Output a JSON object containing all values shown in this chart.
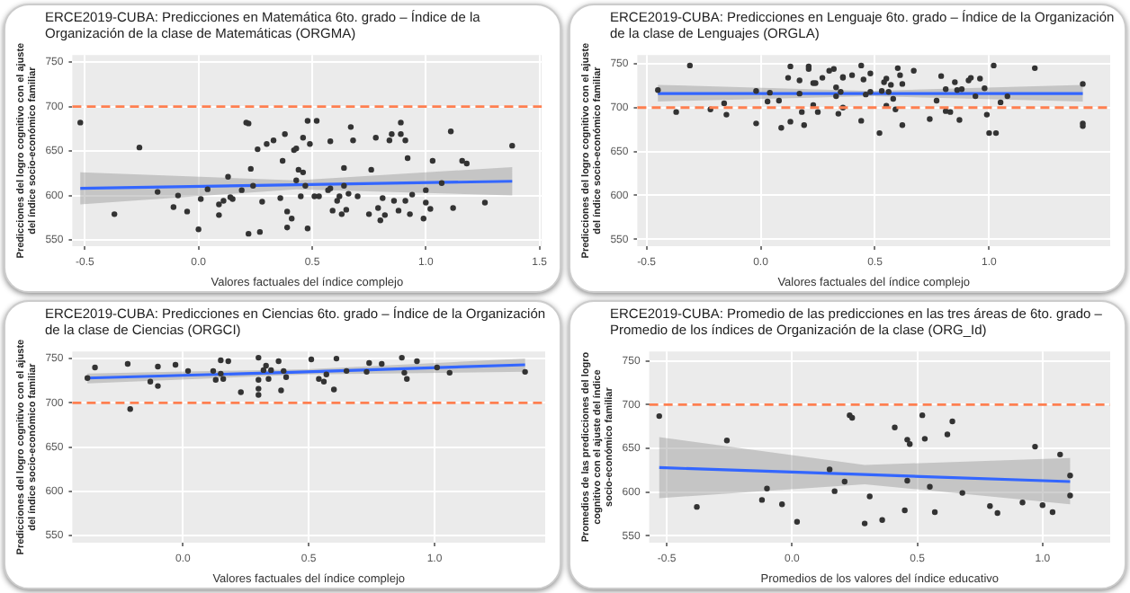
{
  "chart_data": [
    {
      "type": "scatter",
      "title": "ERCE2019-CUBA: Predicciones en Matemática 6to. grado – Índice de la Organización de la clase de Matemáticas (ORGMA)",
      "xlabel": "Valores factuales del índice complejo",
      "ylabel": "Predicciones del logro cognitivo con el ajuste del índice socio-económico familiar",
      "xlim": [
        -0.555,
        1.51
      ],
      "ylim": [
        543,
        758
      ],
      "xticks": [
        {
          "value": -0.5,
          "label": "-0.5"
        },
        {
          "value": 0,
          "label": "0.0"
        },
        {
          "value": 0.5,
          "label": "0.5"
        },
        {
          "value": 1,
          "label": "1.0"
        },
        {
          "value": 1.5,
          "label": "1.5"
        }
      ],
      "yticks": [
        550,
        600,
        650,
        700,
        750
      ],
      "grid": true,
      "marker": "circle",
      "ref_lines": [
        {
          "axis": "y",
          "value": 700,
          "color": "#ff7f50",
          "line_style": "dashed"
        }
      ],
      "series": [
        {
          "type": "scatter",
          "color": "#333333",
          "x": [
            -0.52,
            -0.26,
            -0.37,
            -0.18,
            -0.11,
            -0.09,
            -0.05,
            0.0,
            0.01,
            0.04,
            0.09,
            0.09,
            0.11,
            0.13,
            0.14,
            0.15,
            0.19,
            0.21,
            0.22,
            0.23,
            0.24,
            0.26,
            0.27,
            0.22,
            0.28,
            0.3,
            0.33,
            0.36,
            0.37,
            0.38,
            0.39,
            0.42,
            0.43,
            0.43,
            0.44,
            0.45,
            0.46,
            0.46,
            0.39,
            0.41,
            0.47,
            0.48,
            0.48,
            0.51,
            0.52,
            0.49,
            0.53,
            0.57,
            0.58,
            0.58,
            0.59,
            0.61,
            0.62,
            0.63,
            0.64,
            0.64,
            0.66,
            0.65,
            0.67,
            0.68,
            0.7,
            0.75,
            0.76,
            0.78,
            0.79,
            0.8,
            0.81,
            0.82,
            0.84,
            0.85,
            0.86,
            0.88,
            0.89,
            0.89,
            0.91,
            0.91,
            0.92,
            0.93,
            0.94,
            0.99,
            1.0,
            1.02,
            1.03,
            1.07,
            1.11,
            1.12,
            1.16,
            1.18,
            1.26,
            1.38,
            1.0
          ],
          "values": [
            682,
            654,
            579,
            604,
            587,
            600,
            582,
            562,
            596,
            607,
            590,
            578,
            594,
            621,
            598,
            596,
            606,
            682,
            681,
            630,
            611,
            652,
            559,
            557,
            593,
            658,
            662,
            597,
            639,
            669,
            564,
            651,
            617,
            653,
            629,
            599,
            626,
            665,
            582,
            574,
            611,
            684,
            563,
            599,
            684,
            658,
            599,
            606,
            661,
            608,
            583,
            594,
            599,
            579,
            611,
            631,
            602,
            584,
            677,
            662,
            599,
            579,
            629,
            665,
            586,
            572,
            597,
            578,
            662,
            669,
            594,
            583,
            669,
            682,
            594,
            662,
            642,
            579,
            601,
            574,
            606,
            585,
            639,
            614,
            672,
            586,
            639,
            636,
            592,
            656,
            592
          ]
        },
        {
          "type": "line",
          "marker": "none",
          "color": "#3366ff",
          "x": [
            -0.52,
            0.43,
            1.38
          ],
          "values": [
            608,
            612,
            616
          ],
          "lower": [
            590,
            607,
            600
          ],
          "upper": [
            626,
            617,
            632
          ]
        }
      ]
    },
    {
      "type": "scatter",
      "title": "ERCE2019-CUBA: Predicciones en Lenguaje 6to. grado – Índice de la Organización de la clase de Lenguajes (ORGLA)",
      "xlabel": "Valores factuales del índice complejo",
      "ylabel": "Predicciones del logro cognitivo con el ajuste del índice socio-económico familiar",
      "xlim": [
        -0.54,
        1.53
      ],
      "ylim": [
        542,
        760
      ],
      "xticks": [
        {
          "value": -0.5,
          "label": "-0.5"
        },
        {
          "value": 0,
          "label": "0.0"
        },
        {
          "value": 0.5,
          "label": "0.5"
        },
        {
          "value": 1,
          "label": "1.0"
        }
      ],
      "yticks": [
        550,
        600,
        650,
        700,
        750
      ],
      "grid": true,
      "marker": "circle",
      "ref_lines": [
        {
          "axis": "y",
          "value": 700,
          "color": "#ff7f50",
          "line_style": "dashed"
        }
      ],
      "series": [
        {
          "type": "scatter",
          "color": "#333333",
          "x": [
            -0.45,
            -0.37,
            -0.31,
            -0.22,
            -0.16,
            -0.15,
            -0.02,
            -0.02,
            0.03,
            0.04,
            0.08,
            0.09,
            0.13,
            0.12,
            0.13,
            0.17,
            0.17,
            0.18,
            0.19,
            0.21,
            0.21,
            0.23,
            0.23,
            0.24,
            0.25,
            0.27,
            0.3,
            0.32,
            0.33,
            0.33,
            0.34,
            0.35,
            0.36,
            0.36,
            0.36,
            0.4,
            0.44,
            0.44,
            0.45,
            0.46,
            0.48,
            0.48,
            0.52,
            0.53,
            0.54,
            0.55,
            0.55,
            0.56,
            0.57,
            0.58,
            0.59,
            0.6,
            0.61,
            0.62,
            0.62,
            0.67,
            0.74,
            0.77,
            0.79,
            0.81,
            0.81,
            0.83,
            0.85,
            0.86,
            0.87,
            0.88,
            0.91,
            0.92,
            0.94,
            0.96,
            0.98,
            0.99,
            1.0,
            1.02,
            1.03,
            1.05,
            1.08,
            1.2,
            1.41,
            1.41,
            1.41
          ],
          "values": [
            720,
            695,
            748,
            698,
            705,
            692,
            682,
            719,
            707,
            717,
            708,
            677,
            747,
            734,
            684,
            731,
            716,
            695,
            680,
            747,
            744,
            728,
            703,
            728,
            695,
            734,
            742,
            744,
            723,
            713,
            693,
            718,
            734,
            700,
            735,
            737,
            685,
            748,
            732,
            715,
            718,
            739,
            671,
            719,
            729,
            702,
            733,
            718,
            726,
            710,
            698,
            745,
            737,
            680,
            727,
            742,
            687,
            708,
            736,
            696,
            721,
            695,
            729,
            720,
            686,
            721,
            731,
            734,
            713,
            733,
            722,
            692,
            671,
            748,
            671,
            706,
            713,
            745,
            727,
            682,
            679
          ]
        },
        {
          "type": "line",
          "marker": "none",
          "color": "#3366ff",
          "x": [
            -0.45,
            0.48,
            1.41
          ],
          "values": [
            716,
            716,
            716
          ],
          "lower": [
            707,
            713,
            707
          ],
          "upper": [
            726,
            719,
            726
          ]
        }
      ]
    },
    {
      "type": "scatter",
      "title": "ERCE2019-CUBA: Predicciones en Ciencias 6to. grado – Índice de la Organización de la clase de Ciencias (ORGCI)",
      "xlabel": "Valores factuales del índice complejo",
      "ylabel": "Predicciones del logro cognitivo con el ajuste del índice socio-económico familiar",
      "xlim": [
        -0.44,
        1.44
      ],
      "ylim": [
        542,
        758
      ],
      "xticks": [
        {
          "value": 0,
          "label": "0.0"
        },
        {
          "value": 0.5,
          "label": "0.5"
        },
        {
          "value": 1,
          "label": "1.0"
        }
      ],
      "yticks": [
        550,
        600,
        650,
        700,
        750
      ],
      "grid": true,
      "marker": "circle",
      "ref_lines": [
        {
          "axis": "y",
          "value": 700,
          "color": "#ff7f50",
          "line_style": "dashed"
        }
      ],
      "series": [
        {
          "type": "scatter",
          "color": "#333333",
          "x": [
            -0.38,
            -0.35,
            -0.22,
            -0.21,
            -0.13,
            -0.1,
            -0.1,
            -0.03,
            0.02,
            0.12,
            0.13,
            0.15,
            0.15,
            0.16,
            0.18,
            0.23,
            0.3,
            0.3,
            0.3,
            0.3,
            0.32,
            0.33,
            0.34,
            0.35,
            0.38,
            0.39,
            0.4,
            0.41,
            0.51,
            0.54,
            0.56,
            0.57,
            0.6,
            0.61,
            0.65,
            0.73,
            0.74,
            0.79,
            0.87,
            0.88,
            0.89,
            0.93,
            1.01,
            1.06,
            1.36
          ],
          "values": [
            728,
            740,
            744,
            693,
            724,
            741,
            719,
            743,
            736,
            736,
            726,
            733,
            748,
            727,
            747,
            712,
            751,
            726,
            716,
            709,
            737,
            742,
            727,
            737,
            747,
            714,
            736,
            729,
            749,
            727,
            724,
            732,
            715,
            750,
            736,
            735,
            745,
            744,
            751,
            734,
            727,
            747,
            740,
            734,
            735
          ]
        },
        {
          "type": "line",
          "marker": "none",
          "color": "#3366ff",
          "x": [
            -0.38,
            0.49,
            1.36
          ],
          "values": [
            728,
            735,
            743
          ],
          "lower": [
            722,
            732,
            735
          ],
          "upper": [
            733,
            738,
            750
          ]
        }
      ]
    },
    {
      "type": "scatter",
      "title": "ERCE2019-CUBA: Promedio de las predicciones en las tres áreas de 6to. grado – Promedio de los índices de Organización de la clase (ORG_Id)",
      "xlabel": "Promedios de los valores del índice educativo",
      "ylabel": "Promedios de las predicciones del logro cognitivo con el ajuste del índice socio-económico familiar",
      "xlim": [
        -0.57,
        1.27
      ],
      "ylim": [
        542,
        761
      ],
      "xticks": [
        {
          "value": -0.5,
          "label": "-0.5"
        },
        {
          "value": 0,
          "label": "0.0"
        },
        {
          "value": 0.5,
          "label": "0.5"
        },
        {
          "value": 1,
          "label": "1.0"
        }
      ],
      "yticks": [
        550,
        600,
        650,
        700,
        750
      ],
      "grid": true,
      "marker": "circle",
      "ref_lines": [
        {
          "axis": "y",
          "value": 700,
          "color": "#ff7f50",
          "line_style": "dashed"
        }
      ],
      "series": [
        {
          "type": "scatter",
          "color": "#333333",
          "x": [
            -0.53,
            -0.38,
            -0.26,
            -0.12,
            -0.1,
            -0.04,
            0.02,
            0.15,
            0.17,
            0.21,
            0.23,
            0.24,
            0.31,
            0.29,
            0.36,
            0.41,
            0.45,
            0.46,
            0.47,
            0.46,
            0.52,
            0.53,
            0.55,
            0.57,
            0.62,
            0.64,
            0.68,
            0.79,
            0.82,
            0.92,
            0.97,
            1.0,
            1.04,
            1.07,
            1.11,
            1.11
          ],
          "values": [
            687,
            583,
            659,
            591,
            604,
            586,
            566,
            626,
            601,
            612,
            688,
            685,
            595,
            564,
            568,
            674,
            579,
            660,
            655,
            613,
            688,
            661,
            606,
            577,
            666,
            681,
            599,
            584,
            576,
            588,
            652,
            585,
            577,
            643,
            619,
            596
          ]
        },
        {
          "type": "line",
          "marker": "none",
          "color": "#3366ff",
          "x": [
            -0.53,
            0.29,
            1.11
          ],
          "values": [
            628,
            620,
            612
          ],
          "lower": [
            593,
            609,
            586
          ],
          "upper": [
            663,
            631,
            639
          ]
        }
      ]
    }
  ]
}
